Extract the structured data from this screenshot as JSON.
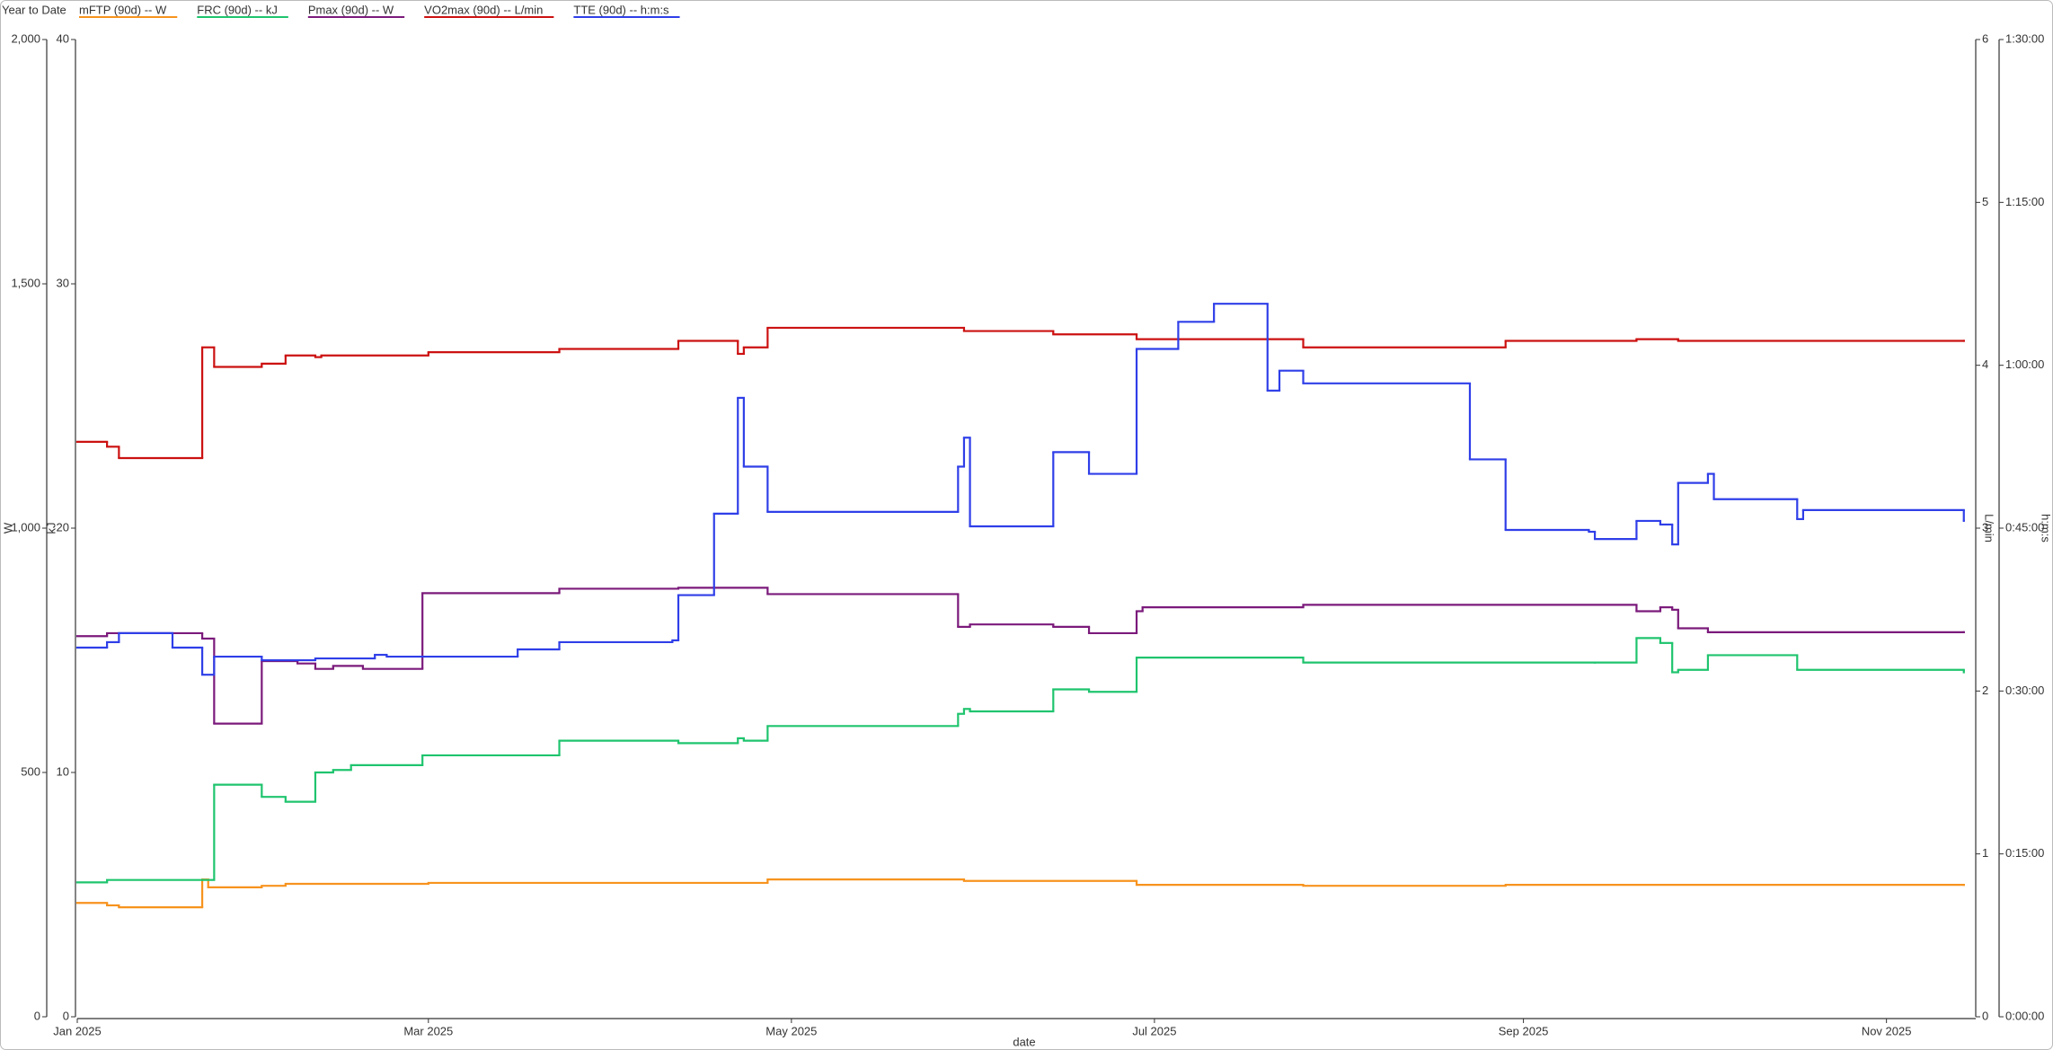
{
  "chart_data": {
    "type": "line",
    "line_shape": "hv",
    "title": "Year to Date",
    "x_label": "date",
    "xlim": [
      0,
      319
    ],
    "xticks": [
      {
        "value": 0,
        "label": "Jan 2025"
      },
      {
        "value": 59,
        "label": "Mar 2025"
      },
      {
        "value": 120,
        "label": "May 2025"
      },
      {
        "value": 181,
        "label": "Jul 2025"
      },
      {
        "value": 243,
        "label": "Sep 2025"
      },
      {
        "value": 304,
        "label": "Nov 2025"
      }
    ],
    "axes": [
      {
        "label": "W",
        "side": "left",
        "lim": [
          0,
          2000
        ],
        "ticks": [
          0,
          500,
          {
            "value": 1000,
            "label": "1,000"
          },
          {
            "value": 1500,
            "label": "1,500"
          },
          {
            "value": 2000,
            "label": "2,000"
          }
        ]
      },
      {
        "label": "kJ",
        "side": "left",
        "lim": [
          0,
          40
        ],
        "ticks": [
          0,
          10,
          20,
          30,
          40
        ]
      },
      {
        "label": "L/min",
        "side": "right",
        "lim": [
          0,
          6
        ],
        "ticks": [
          0,
          1,
          2,
          3,
          4,
          5,
          6
        ]
      },
      {
        "label": "h:m:s",
        "side": "right",
        "lim": [
          0,
          5400
        ],
        "ticks": [
          {
            "value": 0,
            "label": "0:00:00"
          },
          {
            "value": 900,
            "label": "0:15:00"
          },
          {
            "value": 1800,
            "label": "0:30:00"
          },
          {
            "value": 2700,
            "label": "0:45:00"
          },
          {
            "value": 3600,
            "label": "1:00:00"
          },
          {
            "value": 4500,
            "label": "1:15:00"
          },
          {
            "value": 5400,
            "label": "1:30:00"
          }
        ]
      }
    ],
    "series": [
      {
        "name": "mFTP (90d)  -- W",
        "color": "#f7931e",
        "axis": 0,
        "x": [
          0,
          5,
          7,
          21,
          22,
          31,
          35,
          59,
          116,
          149,
          178,
          206,
          240,
          317
        ],
        "values": [
          233,
          228,
          224,
          281,
          265,
          268,
          272,
          274,
          281,
          278,
          270,
          268,
          270,
          270
        ]
      },
      {
        "name": "FRC (90d)  -- kJ",
        "color": "#1fc46e",
        "axis": 1,
        "x": [
          0,
          5,
          21,
          23,
          31,
          35,
          40,
          43,
          46,
          58,
          81,
          101,
          111,
          112,
          116,
          148,
          149,
          150,
          164,
          170,
          178,
          206,
          255,
          262,
          266,
          268,
          269,
          274,
          289,
          317
        ],
        "values": [
          5.5,
          5.6,
          5.6,
          9.5,
          9.0,
          8.8,
          10.0,
          10.1,
          10.3,
          10.7,
          11.3,
          11.2,
          11.4,
          11.3,
          11.9,
          12.4,
          12.6,
          12.5,
          13.4,
          13.3,
          14.7,
          14.5,
          14.5,
          15.5,
          15.3,
          14.1,
          14.2,
          14.8,
          14.2,
          14.1
        ]
      },
      {
        "name": "Pmax (90d)  -- W",
        "color": "#7b1a7b",
        "axis": 0,
        "x": [
          0,
          5,
          21,
          23,
          31,
          37,
          40,
          43,
          48,
          58,
          81,
          101,
          116,
          148,
          150,
          164,
          170,
          178,
          179,
          206,
          262,
          266,
          268,
          269,
          274,
          317
        ],
        "values": [
          779,
          785,
          774,
          600,
          728,
          723,
          712,
          718,
          712,
          867,
          876,
          878,
          865,
          798,
          803,
          798,
          785,
          830,
          838,
          843,
          830,
          838,
          833,
          795,
          787,
          787
        ]
      },
      {
        "name": "VO2max (90d)  -- L/min",
        "color": "#cc1111",
        "axis": 2,
        "x": [
          0,
          5,
          7,
          21,
          23,
          31,
          35,
          40,
          41,
          59,
          81,
          101,
          111,
          112,
          116,
          149,
          164,
          178,
          206,
          240,
          262,
          269,
          317
        ],
        "values": [
          3.53,
          3.5,
          3.43,
          4.11,
          3.99,
          4.01,
          4.06,
          4.05,
          4.06,
          4.08,
          4.1,
          4.15,
          4.07,
          4.11,
          4.23,
          4.21,
          4.19,
          4.16,
          4.11,
          4.15,
          4.16,
          4.15,
          4.15
        ]
      },
      {
        "name": "TTE (90d)  -- h:m:s",
        "color": "#2f3fe8",
        "axis": 3,
        "x": [
          0,
          5,
          7,
          16,
          21,
          23,
          31,
          40,
          50,
          52,
          74,
          81,
          100,
          101,
          107,
          111,
          112,
          116,
          148,
          149,
          150,
          164,
          170,
          178,
          185,
          191,
          200,
          202,
          206,
          234,
          240,
          254,
          255,
          262,
          266,
          268,
          269,
          274,
          275,
          289,
          290,
          317
        ],
        "values": [
          2040,
          2070,
          2120,
          2040,
          1890,
          1990,
          1970,
          1980,
          2000,
          1990,
          2030,
          2070,
          2080,
          2330,
          2780,
          3420,
          3040,
          2790,
          3040,
          3200,
          2710,
          3120,
          3000,
          3690,
          3840,
          3940,
          3460,
          3570,
          3500,
          3080,
          2690,
          2680,
          2640,
          2740,
          2720,
          2610,
          2950,
          3000,
          2860,
          2750,
          2800,
          2740
        ]
      }
    ]
  }
}
